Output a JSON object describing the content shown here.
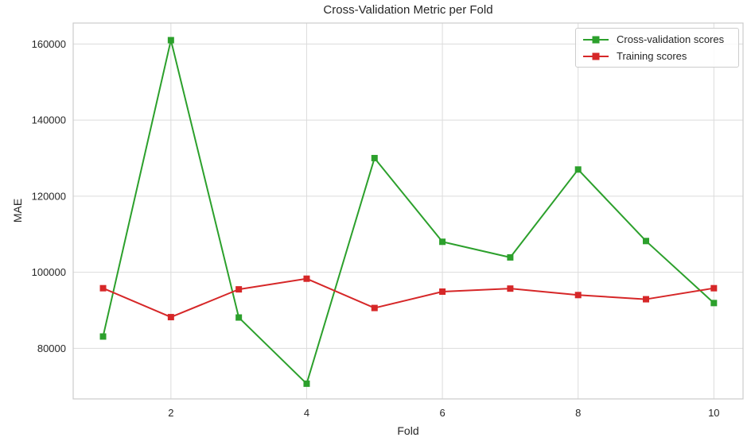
{
  "chart_data": {
    "type": "line",
    "title": "Cross-Validation Metric per Fold",
    "xlabel": "Fold",
    "ylabel": "MAE",
    "x": [
      1,
      2,
      3,
      4,
      5,
      6,
      7,
      8,
      9,
      10
    ],
    "series": [
      {
        "name": "Cross-validation scores",
        "color": "#2ca02c",
        "marker": "square",
        "values": [
          83100,
          161000,
          88100,
          70700,
          130000,
          108000,
          103900,
          127000,
          108200,
          91900
        ]
      },
      {
        "name": "Training scores",
        "color": "#d62728",
        "marker": "square",
        "values": [
          95800,
          88200,
          95500,
          98300,
          90600,
          94900,
          95700,
          94000,
          92900,
          95800
        ]
      }
    ],
    "xlim": [
      0.56,
      10.43
    ],
    "ylim": [
      66700,
      165500
    ],
    "xticks": [
      2,
      4,
      6,
      8,
      10
    ],
    "yticks": [
      80000,
      100000,
      120000,
      140000,
      160000
    ],
    "grid": true,
    "legend_position": "upper right",
    "colors": {
      "grid": "#dcdcdc",
      "spine": "#cccccc",
      "text": "#262626",
      "background": "#ffffff"
    }
  }
}
